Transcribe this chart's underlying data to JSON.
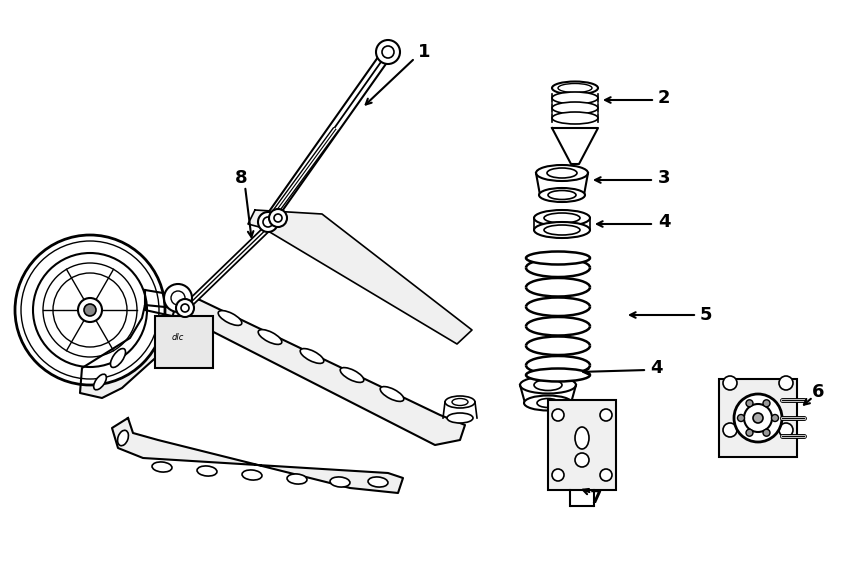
{
  "bg_color": "#ffffff",
  "line_color": "#000000",
  "fig_width": 8.63,
  "fig_height": 5.75,
  "dpi": 100
}
